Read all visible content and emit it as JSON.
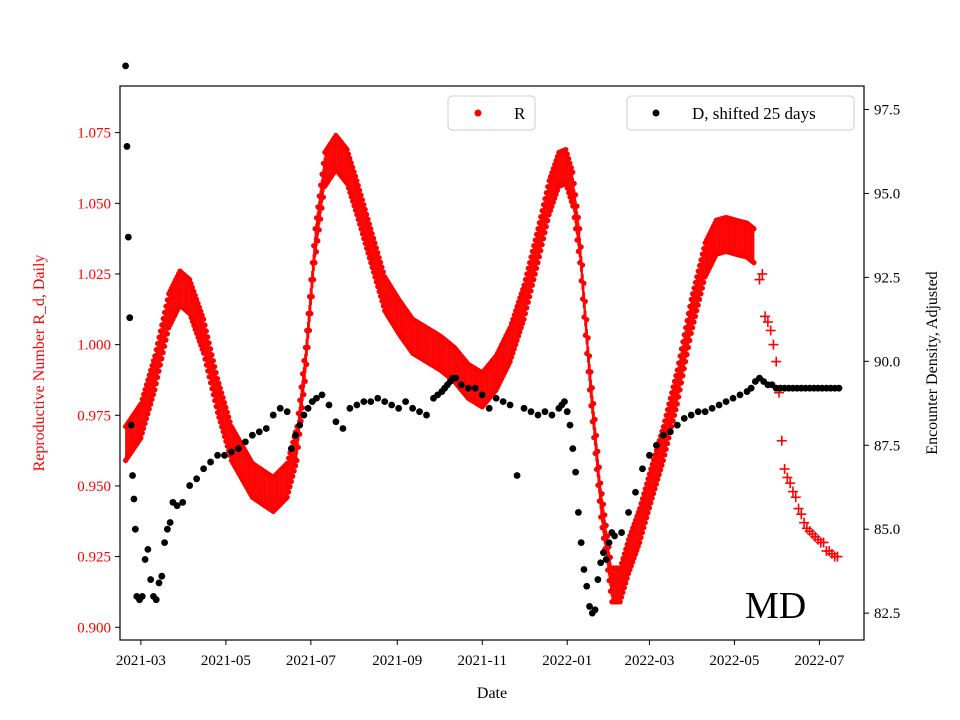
{
  "chart_data": {
    "type": "scatter",
    "title": "",
    "annotation": "MD",
    "xlabel": "Date",
    "ylabel_left": "Reproductive Number R_d, Daily",
    "ylabel_right": "Encounter Density, Adjusted",
    "x_range": [
      -15,
      519
    ],
    "ylim_left": [
      0.8955,
      1.0915
    ],
    "ylim_right": [
      81.7,
      98.2
    ],
    "x_ticks": [
      {
        "label": "2021-03",
        "day": 0
      },
      {
        "label": "2021-05",
        "day": 61
      },
      {
        "label": "2021-07",
        "day": 122
      },
      {
        "label": "2021-09",
        "day": 184
      },
      {
        "label": "2021-11",
        "day": 245
      },
      {
        "label": "2022-01",
        "day": 306
      },
      {
        "label": "2022-03",
        "day": 365
      },
      {
        "label": "2022-05",
        "day": 426
      },
      {
        "label": "2022-07",
        "day": 487
      }
    ],
    "y_ticks_left": [
      "0.900",
      "0.925",
      "0.950",
      "0.975",
      "1.000",
      "1.025",
      "1.050",
      "1.075"
    ],
    "y_ticks_right": [
      "82.5",
      "85.0",
      "87.5",
      "90.0",
      "92.5",
      "95.0",
      "97.5"
    ],
    "legend": {
      "r_label": "R",
      "d_label": "D, shifted 25 days",
      "r_color": "#ff0000",
      "d_color": "#000000"
    },
    "series_R": {
      "name": "R",
      "color": "#ff0000",
      "marker": "dot",
      "band_half_width": 0.006,
      "day": [
        -11,
        0,
        10,
        20,
        28,
        35,
        45,
        55,
        65,
        80,
        95,
        105,
        112,
        118,
        125,
        132,
        140,
        148,
        155,
        165,
        175,
        185,
        195,
        205,
        215,
        225,
        235,
        245,
        255,
        265,
        275,
        285,
        293,
        300,
        305,
        310,
        315,
        322,
        330,
        338,
        344,
        350,
        358,
        366,
        375,
        385,
        395,
        405,
        413,
        420,
        427,
        435,
        440
      ],
      "value": [
        0.965,
        0.973,
        0.99,
        1.012,
        1.02,
        1.017,
        1.003,
        0.982,
        0.965,
        0.952,
        0.947,
        0.952,
        0.965,
        0.993,
        1.035,
        1.062,
        1.068,
        1.063,
        1.052,
        1.035,
        1.018,
        1.01,
        1.003,
        1.0,
        0.997,
        0.993,
        0.987,
        0.984,
        0.99,
        1.0,
        1.015,
        1.035,
        1.052,
        1.062,
        1.063,
        1.055,
        1.035,
        0.99,
        0.945,
        0.915,
        0.915,
        0.925,
        0.936,
        0.95,
        0.965,
        0.985,
        1.01,
        1.03,
        1.038,
        1.039,
        1.038,
        1.037,
        1.035
      ]
    },
    "series_R_projection": {
      "name": "R projection",
      "color": "#ff0000",
      "marker": "plus",
      "day": [
        444,
        446,
        448,
        450,
        452,
        454,
        456,
        458,
        460,
        462,
        464,
        466,
        468,
        470,
        472,
        474,
        476,
        478,
        480,
        482,
        484,
        486,
        488,
        490,
        492,
        494,
        496,
        498,
        500
      ],
      "value": [
        1.023,
        1.025,
        1.01,
        1.008,
        1.005,
        1.0,
        0.994,
        0.983,
        0.966,
        0.956,
        0.953,
        0.951,
        0.948,
        0.946,
        0.942,
        0.94,
        0.937,
        0.935,
        0.934,
        0.933,
        0.932,
        0.931,
        0.93,
        0.93,
        0.927,
        0.927,
        0.926,
        0.925,
        0.925
      ]
    },
    "series_D": {
      "name": "D, shifted 25 days",
      "color": "#000000",
      "marker": "dot",
      "axis": "right",
      "day": [
        -11,
        -10,
        -9,
        -8,
        -7,
        -6,
        -5,
        -4,
        -3,
        -1,
        1,
        3,
        5,
        7,
        9,
        11,
        13,
        15,
        17,
        19,
        21,
        23,
        26,
        30,
        35,
        40,
        45,
        50,
        55,
        60,
        65,
        70,
        75,
        80,
        85,
        90,
        95,
        100,
        105,
        108,
        111,
        114,
        117,
        120,
        123,
        126,
        130,
        135,
        140,
        145,
        150,
        155,
        160,
        165,
        170,
        175,
        180,
        185,
        190,
        195,
        200,
        205,
        210,
        213,
        216,
        218,
        220,
        222,
        224,
        226,
        230,
        235,
        240,
        245,
        250,
        255,
        260,
        265,
        270,
        275,
        280,
        285,
        290,
        295,
        300,
        302,
        304,
        306,
        308,
        310,
        312,
        314,
        316,
        318,
        320,
        322,
        324,
        326,
        328,
        330,
        332,
        334,
        336,
        338,
        340,
        345,
        350,
        355,
        360,
        365,
        370,
        375,
        380,
        385,
        390,
        395,
        400,
        405,
        410,
        415,
        420,
        425,
        430,
        435,
        438,
        441,
        444,
        447,
        450,
        453,
        456,
        459,
        462,
        465,
        468,
        471,
        474,
        477,
        480,
        483,
        486,
        489,
        492,
        495,
        498,
        501
      ],
      "value": [
        98.8,
        96.4,
        93.7,
        91.3,
        88.1,
        86.6,
        85.9,
        85.0,
        83.0,
        82.9,
        83.0,
        84.1,
        84.4,
        83.5,
        83.0,
        82.9,
        83.4,
        83.6,
        84.6,
        85.0,
        85.2,
        85.8,
        85.7,
        85.8,
        86.3,
        86.5,
        86.8,
        87.0,
        87.2,
        87.2,
        87.3,
        87.4,
        87.6,
        87.8,
        87.9,
        88.0,
        88.4,
        88.6,
        88.5,
        87.4,
        87.8,
        88.1,
        88.4,
        88.6,
        88.8,
        88.9,
        89.0,
        88.7,
        88.2,
        88.0,
        88.6,
        88.7,
        88.8,
        88.8,
        88.9,
        88.8,
        88.7,
        88.6,
        88.8,
        88.6,
        88.5,
        88.4,
        88.9,
        89.0,
        89.1,
        89.2,
        89.3,
        89.4,
        89.5,
        89.5,
        89.3,
        89.2,
        89.2,
        89.0,
        88.6,
        88.9,
        88.8,
        88.7,
        86.6,
        88.6,
        88.5,
        88.4,
        88.5,
        88.4,
        88.6,
        88.7,
        88.8,
        88.5,
        88.1,
        87.4,
        86.7,
        85.5,
        84.6,
        83.8,
        83.3,
        82.7,
        82.5,
        82.6,
        83.5,
        84.0,
        84.3,
        84.1,
        84.6,
        84.9,
        84.8,
        84.9,
        85.5,
        86.1,
        86.8,
        87.2,
        87.5,
        87.8,
        87.9,
        88.1,
        88.3,
        88.4,
        88.5,
        88.5,
        88.6,
        88.7,
        88.8,
        88.9,
        89.0,
        89.1,
        89.2,
        89.4,
        89.5,
        89.4,
        89.3,
        89.3,
        89.2,
        89.2,
        89.2,
        89.2,
        89.2,
        89.2,
        89.2,
        89.2,
        89.2,
        89.2,
        89.2,
        89.2,
        89.2,
        89.2,
        89.2,
        89.2
      ]
    }
  }
}
